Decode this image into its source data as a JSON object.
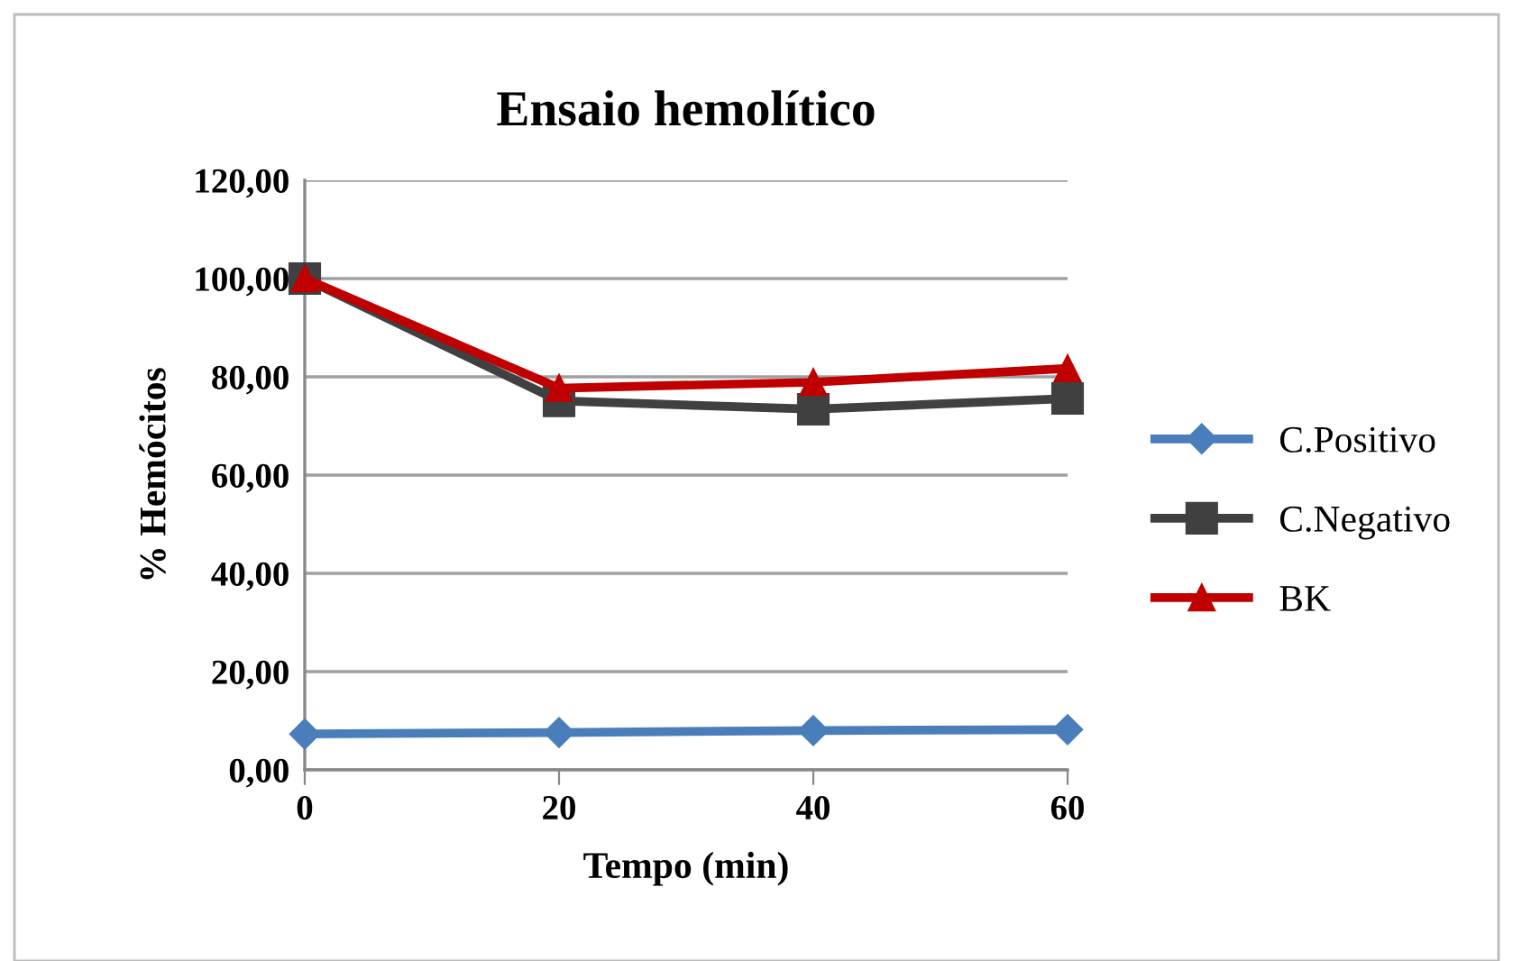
{
  "chart_data": {
    "type": "line",
    "title": "Ensaio hemolítico",
    "xlabel": "Tempo (min)",
    "ylabel": "% Hemócitos",
    "x": [
      0,
      20,
      40,
      60
    ],
    "series": [
      {
        "name": "C.Positivo",
        "color": "#4a7ebb",
        "marker": "diamond",
        "values": [
          7.3,
          7.6,
          8.0,
          8.2
        ]
      },
      {
        "name": "C.Negativo",
        "color": "#404040",
        "marker": "square",
        "values": [
          100,
          75.1,
          73.4,
          75.6
        ]
      },
      {
        "name": "BK",
        "color": "#c00000",
        "marker": "triangle",
        "values": [
          100,
          77.7,
          78.9,
          81.7
        ]
      }
    ],
    "xlim": [
      0,
      60
    ],
    "xticks": [
      0,
      20,
      40,
      60
    ],
    "ylim": [
      0,
      120
    ],
    "yticks": [
      {
        "value": 0,
        "label": "0,00"
      },
      {
        "value": 20,
        "label": "20,00"
      },
      {
        "value": 40,
        "label": "40,00"
      },
      {
        "value": 60,
        "label": "60,00"
      },
      {
        "value": 80,
        "label": "80,00"
      },
      {
        "value": 100,
        "label": "100,00"
      },
      {
        "value": 120,
        "label": "120,00"
      }
    ],
    "grid": "y",
    "legend": "right",
    "line_style": "solid"
  }
}
